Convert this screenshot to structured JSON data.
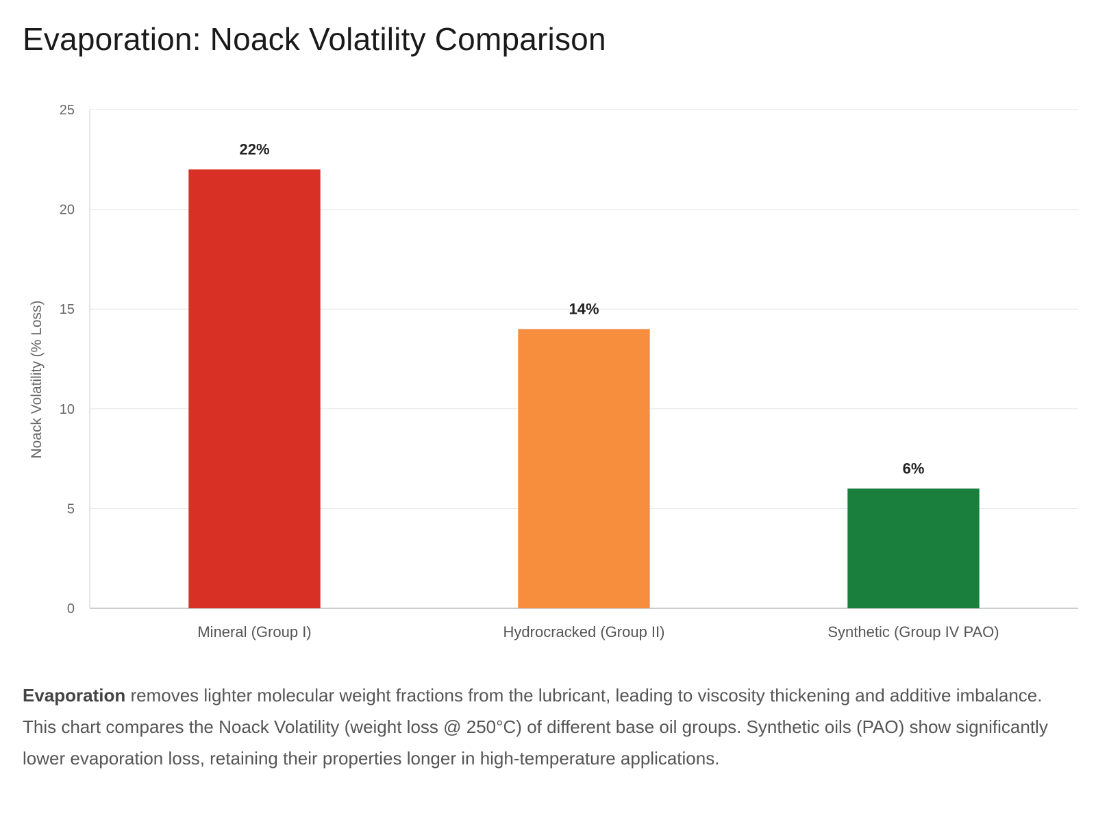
{
  "title": "Evaporation: Noack Volatility Comparison",
  "chart_data": {
    "type": "bar",
    "categories": [
      "Mineral (Group I)",
      "Hydrocracked (Group II)",
      "Synthetic (Group IV PAO)"
    ],
    "values": [
      22,
      14,
      6
    ],
    "data_labels": [
      "22%",
      "14%",
      "6%"
    ],
    "colors": [
      "#d93025",
      "#f68e3e",
      "#1a7f3c"
    ],
    "xlabel": "",
    "ylabel": "Noack Volatility (% Loss)",
    "ylim": [
      0,
      25
    ],
    "yticks": [
      0,
      5,
      10,
      15,
      20,
      25
    ],
    "grid": true,
    "legend": "none"
  },
  "caption": {
    "bold": "Evaporation",
    "text": " removes lighter molecular weight fractions from the lubricant, leading to viscosity thickening and additive imbalance. This chart compares the Noack Volatility (weight loss @ 250°C) of different base oil groups. Synthetic oils (PAO) show significantly lower evaporation loss, retaining their properties longer in high-temperature applications."
  }
}
